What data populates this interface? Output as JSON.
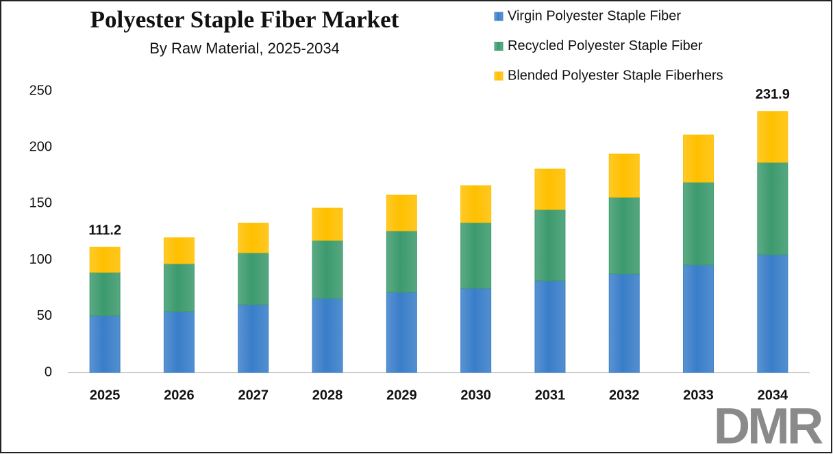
{
  "chart_data": {
    "type": "stacked_bar",
    "title": "Polyester Staple Fiber Market",
    "subtitle": "By Raw Material, 2025-2034",
    "categories": [
      "2025",
      "2026",
      "2027",
      "2028",
      "2029",
      "2030",
      "2031",
      "2032",
      "2033",
      "2034"
    ],
    "series": [
      {
        "name": "Virgin Polyester Staple Fiber",
        "color": "#3a7ec9",
        "values": [
          50.5,
          54.1,
          60.2,
          65.7,
          71.2,
          74.8,
          81.5,
          87.6,
          95.5,
          104.6
        ]
      },
      {
        "name": "Recycled Polyester Staple Fiber",
        "color": "#3d9a6e",
        "values": [
          38.5,
          42.6,
          46.2,
          51.7,
          54.7,
          58.4,
          63.3,
          68.1,
          73.6,
          82.1
        ]
      },
      {
        "name": "Blended Polyester Staple Fiberhers",
        "color": "#ffc000",
        "values": [
          22.2,
          23.1,
          26.2,
          28.6,
          31.6,
          32.8,
          35.9,
          38.3,
          41.9,
          45.2
        ]
      }
    ],
    "annotations": [
      {
        "x": "2025",
        "value": 111.2
      },
      {
        "x": "2034",
        "value": 231.9
      }
    ],
    "ylim": [
      0,
      250
    ],
    "yticks": [
      0,
      50,
      100,
      150,
      200,
      250
    ],
    "grid": false,
    "legend": "top-right",
    "logo": "DMR"
  }
}
